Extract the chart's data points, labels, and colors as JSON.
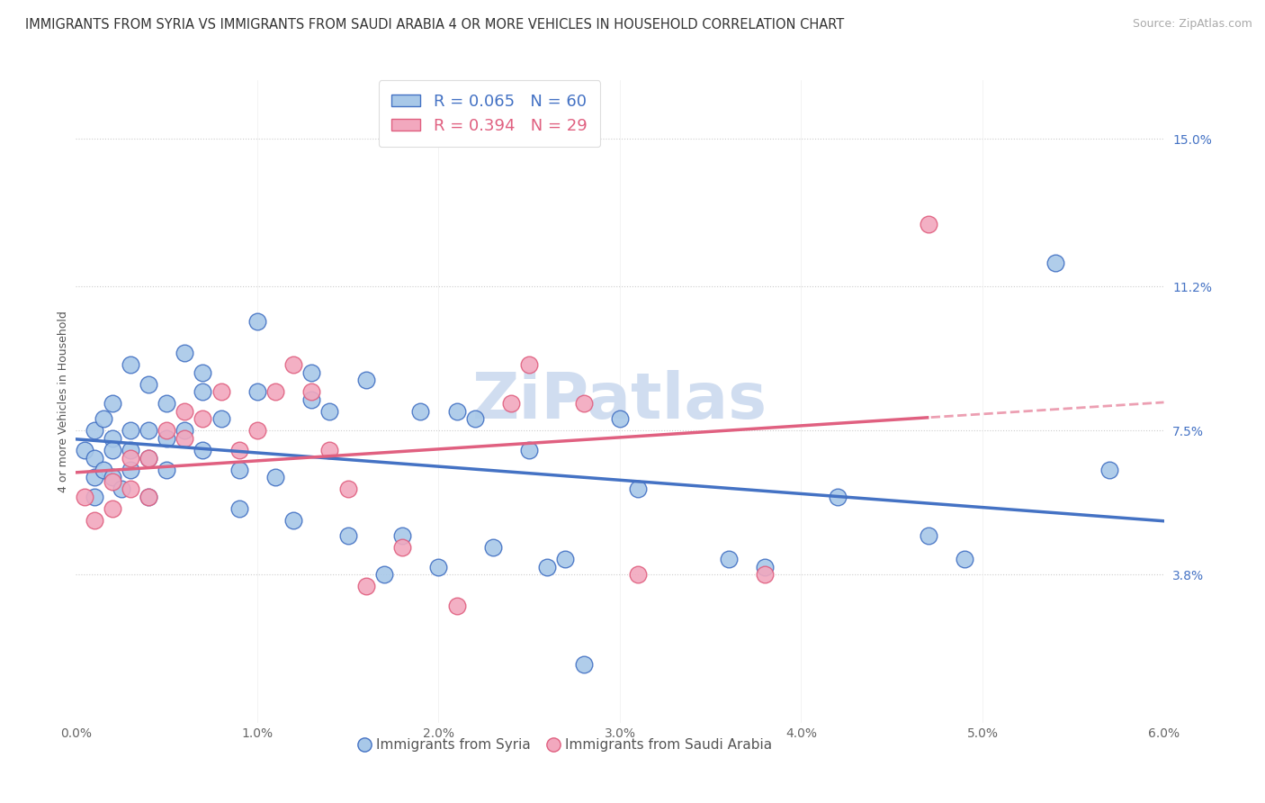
{
  "title": "IMMIGRANTS FROM SYRIA VS IMMIGRANTS FROM SAUDI ARABIA 4 OR MORE VEHICLES IN HOUSEHOLD CORRELATION CHART",
  "source": "Source: ZipAtlas.com",
  "ylabel": "4 or more Vehicles in Household",
  "xlim": [
    0.0,
    0.06
  ],
  "ylim": [
    0.0,
    0.165
  ],
  "xtick_labels": [
    "0.0%",
    "1.0%",
    "2.0%",
    "3.0%",
    "4.0%",
    "5.0%",
    "6.0%"
  ],
  "xtick_vals": [
    0.0,
    0.01,
    0.02,
    0.03,
    0.04,
    0.05,
    0.06
  ],
  "ytick_labels": [
    "3.8%",
    "7.5%",
    "11.2%",
    "15.0%"
  ],
  "ytick_vals": [
    0.038,
    0.075,
    0.112,
    0.15
  ],
  "legend_syria": "Immigrants from Syria",
  "legend_saudi": "Immigrants from Saudi Arabia",
  "R_syria": "0.065",
  "N_syria": "60",
  "R_saudi": "0.394",
  "N_saudi": "29",
  "syria_color": "#a8c8e8",
  "saudi_color": "#f2a8be",
  "syria_line_color": "#4472C4",
  "saudi_line_color": "#E06080",
  "title_fontsize": 10.5,
  "axis_label_fontsize": 9,
  "tick_label_fontsize": 10,
  "legend_fontsize": 12,
  "background_color": "#ffffff",
  "syria_x": [
    0.0005,
    0.001,
    0.001,
    0.001,
    0.001,
    0.0015,
    0.0015,
    0.002,
    0.002,
    0.002,
    0.002,
    0.0025,
    0.003,
    0.003,
    0.003,
    0.003,
    0.004,
    0.004,
    0.004,
    0.004,
    0.005,
    0.005,
    0.005,
    0.006,
    0.006,
    0.007,
    0.007,
    0.007,
    0.008,
    0.009,
    0.009,
    0.01,
    0.01,
    0.011,
    0.012,
    0.013,
    0.013,
    0.014,
    0.015,
    0.016,
    0.017,
    0.018,
    0.019,
    0.02,
    0.021,
    0.022,
    0.023,
    0.025,
    0.026,
    0.027,
    0.028,
    0.03,
    0.031,
    0.036,
    0.038,
    0.042,
    0.047,
    0.049,
    0.054,
    0.057
  ],
  "syria_y": [
    0.07,
    0.075,
    0.068,
    0.063,
    0.058,
    0.078,
    0.065,
    0.082,
    0.073,
    0.07,
    0.063,
    0.06,
    0.092,
    0.075,
    0.07,
    0.065,
    0.087,
    0.075,
    0.068,
    0.058,
    0.082,
    0.073,
    0.065,
    0.095,
    0.075,
    0.09,
    0.085,
    0.07,
    0.078,
    0.065,
    0.055,
    0.103,
    0.085,
    0.063,
    0.052,
    0.09,
    0.083,
    0.08,
    0.048,
    0.088,
    0.038,
    0.048,
    0.08,
    0.04,
    0.08,
    0.078,
    0.045,
    0.07,
    0.04,
    0.042,
    0.015,
    0.078,
    0.06,
    0.042,
    0.04,
    0.058,
    0.048,
    0.042,
    0.118,
    0.065
  ],
  "saudi_x": [
    0.0005,
    0.001,
    0.002,
    0.002,
    0.003,
    0.003,
    0.004,
    0.004,
    0.005,
    0.006,
    0.006,
    0.007,
    0.008,
    0.009,
    0.01,
    0.011,
    0.012,
    0.013,
    0.014,
    0.015,
    0.016,
    0.018,
    0.021,
    0.024,
    0.025,
    0.028,
    0.031,
    0.038,
    0.047
  ],
  "saudi_y": [
    0.058,
    0.052,
    0.062,
    0.055,
    0.068,
    0.06,
    0.068,
    0.058,
    0.075,
    0.08,
    0.073,
    0.078,
    0.085,
    0.07,
    0.075,
    0.085,
    0.092,
    0.085,
    0.07,
    0.06,
    0.035,
    0.045,
    0.03,
    0.082,
    0.092,
    0.082,
    0.038,
    0.038,
    0.128
  ],
  "watermark": "ZiPatlas",
  "watermark_color": "#d0ddf0"
}
